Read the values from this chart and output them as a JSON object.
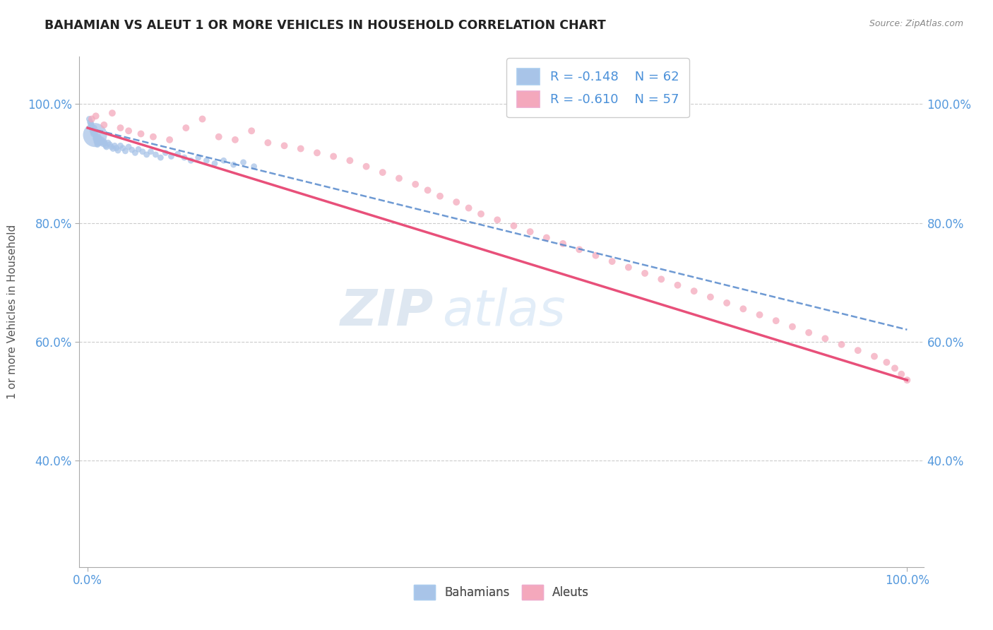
{
  "title": "BAHAMIAN VS ALEUT 1 OR MORE VEHICLES IN HOUSEHOLD CORRELATION CHART",
  "source": "Source: ZipAtlas.com",
  "ylabel": "1 or more Vehicles in Household",
  "xlim": [
    -0.01,
    1.02
  ],
  "ylim": [
    0.22,
    1.08
  ],
  "x_tick_labels": [
    "0.0%",
    "100.0%"
  ],
  "x_tick_values": [
    0.0,
    1.0
  ],
  "y_tick_labels": [
    "40.0%",
    "60.0%",
    "80.0%",
    "100.0%"
  ],
  "y_tick_values": [
    0.4,
    0.6,
    0.8,
    1.0
  ],
  "legend_r_blue": "R = -0.148",
  "legend_n_blue": "N = 62",
  "legend_r_pink": "R = -0.610",
  "legend_n_pink": "N = 57",
  "blue_color": "#a8c4e8",
  "pink_color": "#f4a8bc",
  "blue_line_color": "#5588cc",
  "pink_line_color": "#e8507a",
  "watermark_zip": "ZIP",
  "watermark_atlas": "atlas",
  "bg_color": "#ffffff",
  "grid_color": "#cccccc",
  "bahamian_x": [
    0.002,
    0.003,
    0.004,
    0.004,
    0.005,
    0.005,
    0.006,
    0.006,
    0.007,
    0.007,
    0.008,
    0.008,
    0.009,
    0.009,
    0.01,
    0.01,
    0.011,
    0.011,
    0.012,
    0.012,
    0.013,
    0.014,
    0.015,
    0.016,
    0.017,
    0.018,
    0.019,
    0.02,
    0.021,
    0.022,
    0.023,
    0.025,
    0.027,
    0.029,
    0.031,
    0.033,
    0.035,
    0.037,
    0.04,
    0.043,
    0.046,
    0.05,
    0.054,
    0.058,
    0.062,
    0.067,
    0.072,
    0.077,
    0.083,
    0.089,
    0.095,
    0.102,
    0.11,
    0.118,
    0.126,
    0.135,
    0.145,
    0.155,
    0.166,
    0.178,
    0.19,
    0.203
  ],
  "bahamian_y": [
    0.975,
    0.97,
    0.968,
    0.965,
    0.963,
    0.96,
    0.958,
    0.955,
    0.953,
    0.95,
    0.96,
    0.955,
    0.952,
    0.948,
    0.945,
    0.942,
    0.94,
    0.937,
    0.935,
    0.932,
    0.945,
    0.942,
    0.938,
    0.935,
    0.94,
    0.936,
    0.933,
    0.937,
    0.934,
    0.93,
    0.928,
    0.935,
    0.932,
    0.928,
    0.925,
    0.93,
    0.926,
    0.922,
    0.93,
    0.926,
    0.921,
    0.928,
    0.923,
    0.918,
    0.924,
    0.92,
    0.915,
    0.92,
    0.915,
    0.91,
    0.918,
    0.912,
    0.916,
    0.91,
    0.905,
    0.91,
    0.905,
    0.9,
    0.905,
    0.898,
    0.902,
    0.895
  ],
  "bahamian_size": [
    40,
    40,
    40,
    40,
    40,
    40,
    40,
    40,
    40,
    40,
    40,
    40,
    40,
    40,
    40,
    40,
    40,
    40,
    40,
    40,
    40,
    40,
    40,
    40,
    40,
    40,
    40,
    40,
    40,
    40,
    40,
    40,
    40,
    40,
    40,
    40,
    40,
    40,
    40,
    40,
    40,
    40,
    40,
    40,
    40,
    40,
    40,
    40,
    40,
    40,
    40,
    40,
    40,
    40,
    40,
    40,
    40,
    40,
    40,
    40,
    40,
    40
  ],
  "bahamian_large_idx": 13,
  "bahamian_large_size": 600,
  "aleut_x": [
    0.005,
    0.01,
    0.02,
    0.03,
    0.04,
    0.05,
    0.065,
    0.08,
    0.1,
    0.12,
    0.14,
    0.16,
    0.18,
    0.2,
    0.22,
    0.24,
    0.26,
    0.28,
    0.3,
    0.32,
    0.34,
    0.36,
    0.38,
    0.4,
    0.415,
    0.43,
    0.45,
    0.465,
    0.48,
    0.5,
    0.52,
    0.54,
    0.56,
    0.58,
    0.6,
    0.62,
    0.64,
    0.66,
    0.68,
    0.7,
    0.72,
    0.74,
    0.76,
    0.78,
    0.8,
    0.82,
    0.84,
    0.86,
    0.88,
    0.9,
    0.92,
    0.94,
    0.96,
    0.975,
    0.985,
    0.993,
    1.0
  ],
  "aleut_y": [
    0.975,
    0.98,
    0.965,
    0.985,
    0.96,
    0.955,
    0.95,
    0.945,
    0.94,
    0.96,
    0.975,
    0.945,
    0.94,
    0.955,
    0.935,
    0.93,
    0.925,
    0.918,
    0.912,
    0.905,
    0.895,
    0.885,
    0.875,
    0.865,
    0.855,
    0.845,
    0.835,
    0.825,
    0.815,
    0.805,
    0.795,
    0.785,
    0.775,
    0.765,
    0.755,
    0.745,
    0.735,
    0.725,
    0.715,
    0.705,
    0.695,
    0.685,
    0.675,
    0.665,
    0.655,
    0.645,
    0.635,
    0.625,
    0.615,
    0.605,
    0.595,
    0.585,
    0.575,
    0.565,
    0.555,
    0.545,
    0.535
  ],
  "aleut_size": [
    50,
    50,
    50,
    50,
    50,
    50,
    50,
    50,
    50,
    50,
    50,
    50,
    50,
    50,
    50,
    50,
    50,
    50,
    50,
    50,
    50,
    50,
    50,
    50,
    50,
    50,
    50,
    50,
    50,
    50,
    50,
    50,
    50,
    50,
    50,
    50,
    50,
    50,
    50,
    50,
    50,
    50,
    50,
    50,
    50,
    50,
    50,
    50,
    50,
    50,
    50,
    50,
    50,
    50,
    50,
    50,
    50
  ]
}
